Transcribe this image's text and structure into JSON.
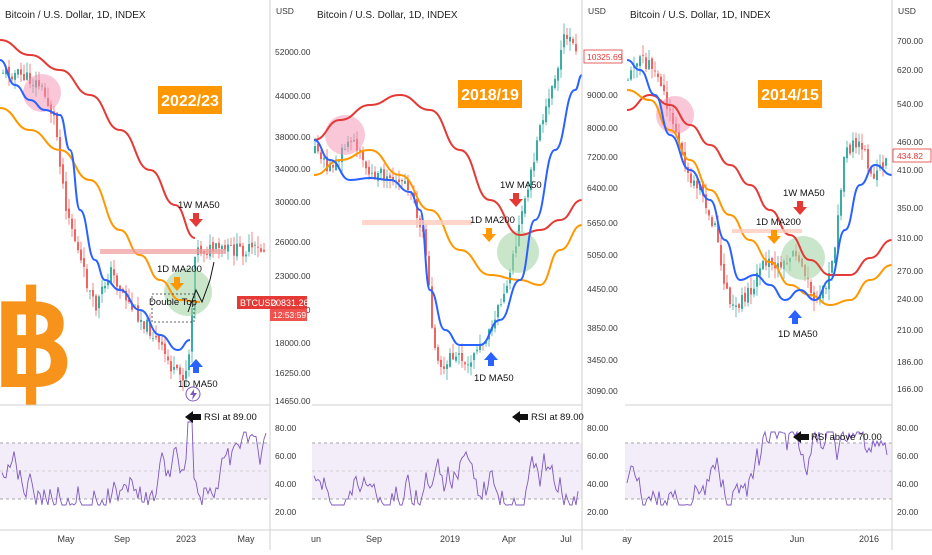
{
  "chart_data": [
    {
      "type": "line",
      "title": "Bitcoin / U.S. Dollar, 1D, INDEX",
      "period_label": "2022/23",
      "currency": "USD",
      "y_ticks": [
        "52000.00",
        "44000.00",
        "38000.00",
        "34000.00",
        "30000.00",
        "26000.00",
        "23000.00",
        "20000.00",
        "18000.00",
        "16250.00",
        "14650.00"
      ],
      "x_ticks": [
        "May",
        "Sep",
        "2023",
        "May"
      ],
      "rsi_ticks": [
        "80.00",
        "60.00",
        "40.00",
        "20.00"
      ],
      "last_price": {
        "label": "BTCUSD",
        "value": "20831.26",
        "countdown": "12:53:59"
      },
      "annotations": {
        "ma50w": "1W MA50",
        "ma200": "1D MA200",
        "ma50d": "1D MA50",
        "double_top": "Double Top",
        "rsi_note": "RSI at 89.00"
      },
      "series": [
        {
          "name": "1W MA50",
          "color": "#e53935"
        },
        {
          "name": "1D MA200",
          "color": "#ff9800"
        },
        {
          "name": "1D MA50",
          "color": "#2962ff"
        },
        {
          "name": "RSI",
          "color": "#7e57c2"
        }
      ]
    },
    {
      "type": "line",
      "title": "Bitcoin / U.S. Dollar, 1D, INDEX",
      "period_label": "2018/19",
      "currency": "USD",
      "y_ticks": [
        "9000.00",
        "8000.00",
        "7200.00",
        "6400.00",
        "5650.00",
        "5050.00",
        "4450.00",
        "3850.00",
        "3450.00",
        "3090.00"
      ],
      "x_ticks": [
        "un",
        "Sep",
        "2019",
        "Apr",
        "Jul"
      ],
      "rsi_ticks": [
        "80.00",
        "60.00",
        "40.00",
        "20.00"
      ],
      "last_price": {
        "value": "10325.69"
      },
      "annotations": {
        "ma50w": "1W MA50",
        "ma200": "1D MA200",
        "ma50d": "1D MA50",
        "rsi_note": "RSI at 89.00"
      }
    },
    {
      "type": "line",
      "title": "Bitcoin / U.S. Dollar, 1D, INDEX",
      "period_label": "2014/15",
      "currency": "USD",
      "y_ticks": [
        "700.00",
        "620.00",
        "540.00",
        "460.00",
        "410.00",
        "350.00",
        "310.00",
        "270.00",
        "240.00",
        "210.00",
        "186.00",
        "166.00"
      ],
      "x_ticks": [
        "ay",
        "2015",
        "Jun",
        "2016"
      ],
      "rsi_ticks": [
        "80.00",
        "60.00",
        "40.00",
        "20.00"
      ],
      "last_price": {
        "value": "434.82"
      },
      "annotations": {
        "ma50w": "1W MA50",
        "ma200": "1D MA200",
        "ma50d": "1D MA50",
        "rsi_note": "RSI above 70.00"
      }
    }
  ],
  "colors": {
    "orange": "#ff9800",
    "red": "#e53935",
    "blue": "#2962ff",
    "rsi": "#7e57c2",
    "up": "#26a69a",
    "down": "#ef5350",
    "btc": "#f7931a"
  },
  "icons": {
    "bitcoin_logo": "bitcoin-logo",
    "lightning": "lightning-icon"
  }
}
